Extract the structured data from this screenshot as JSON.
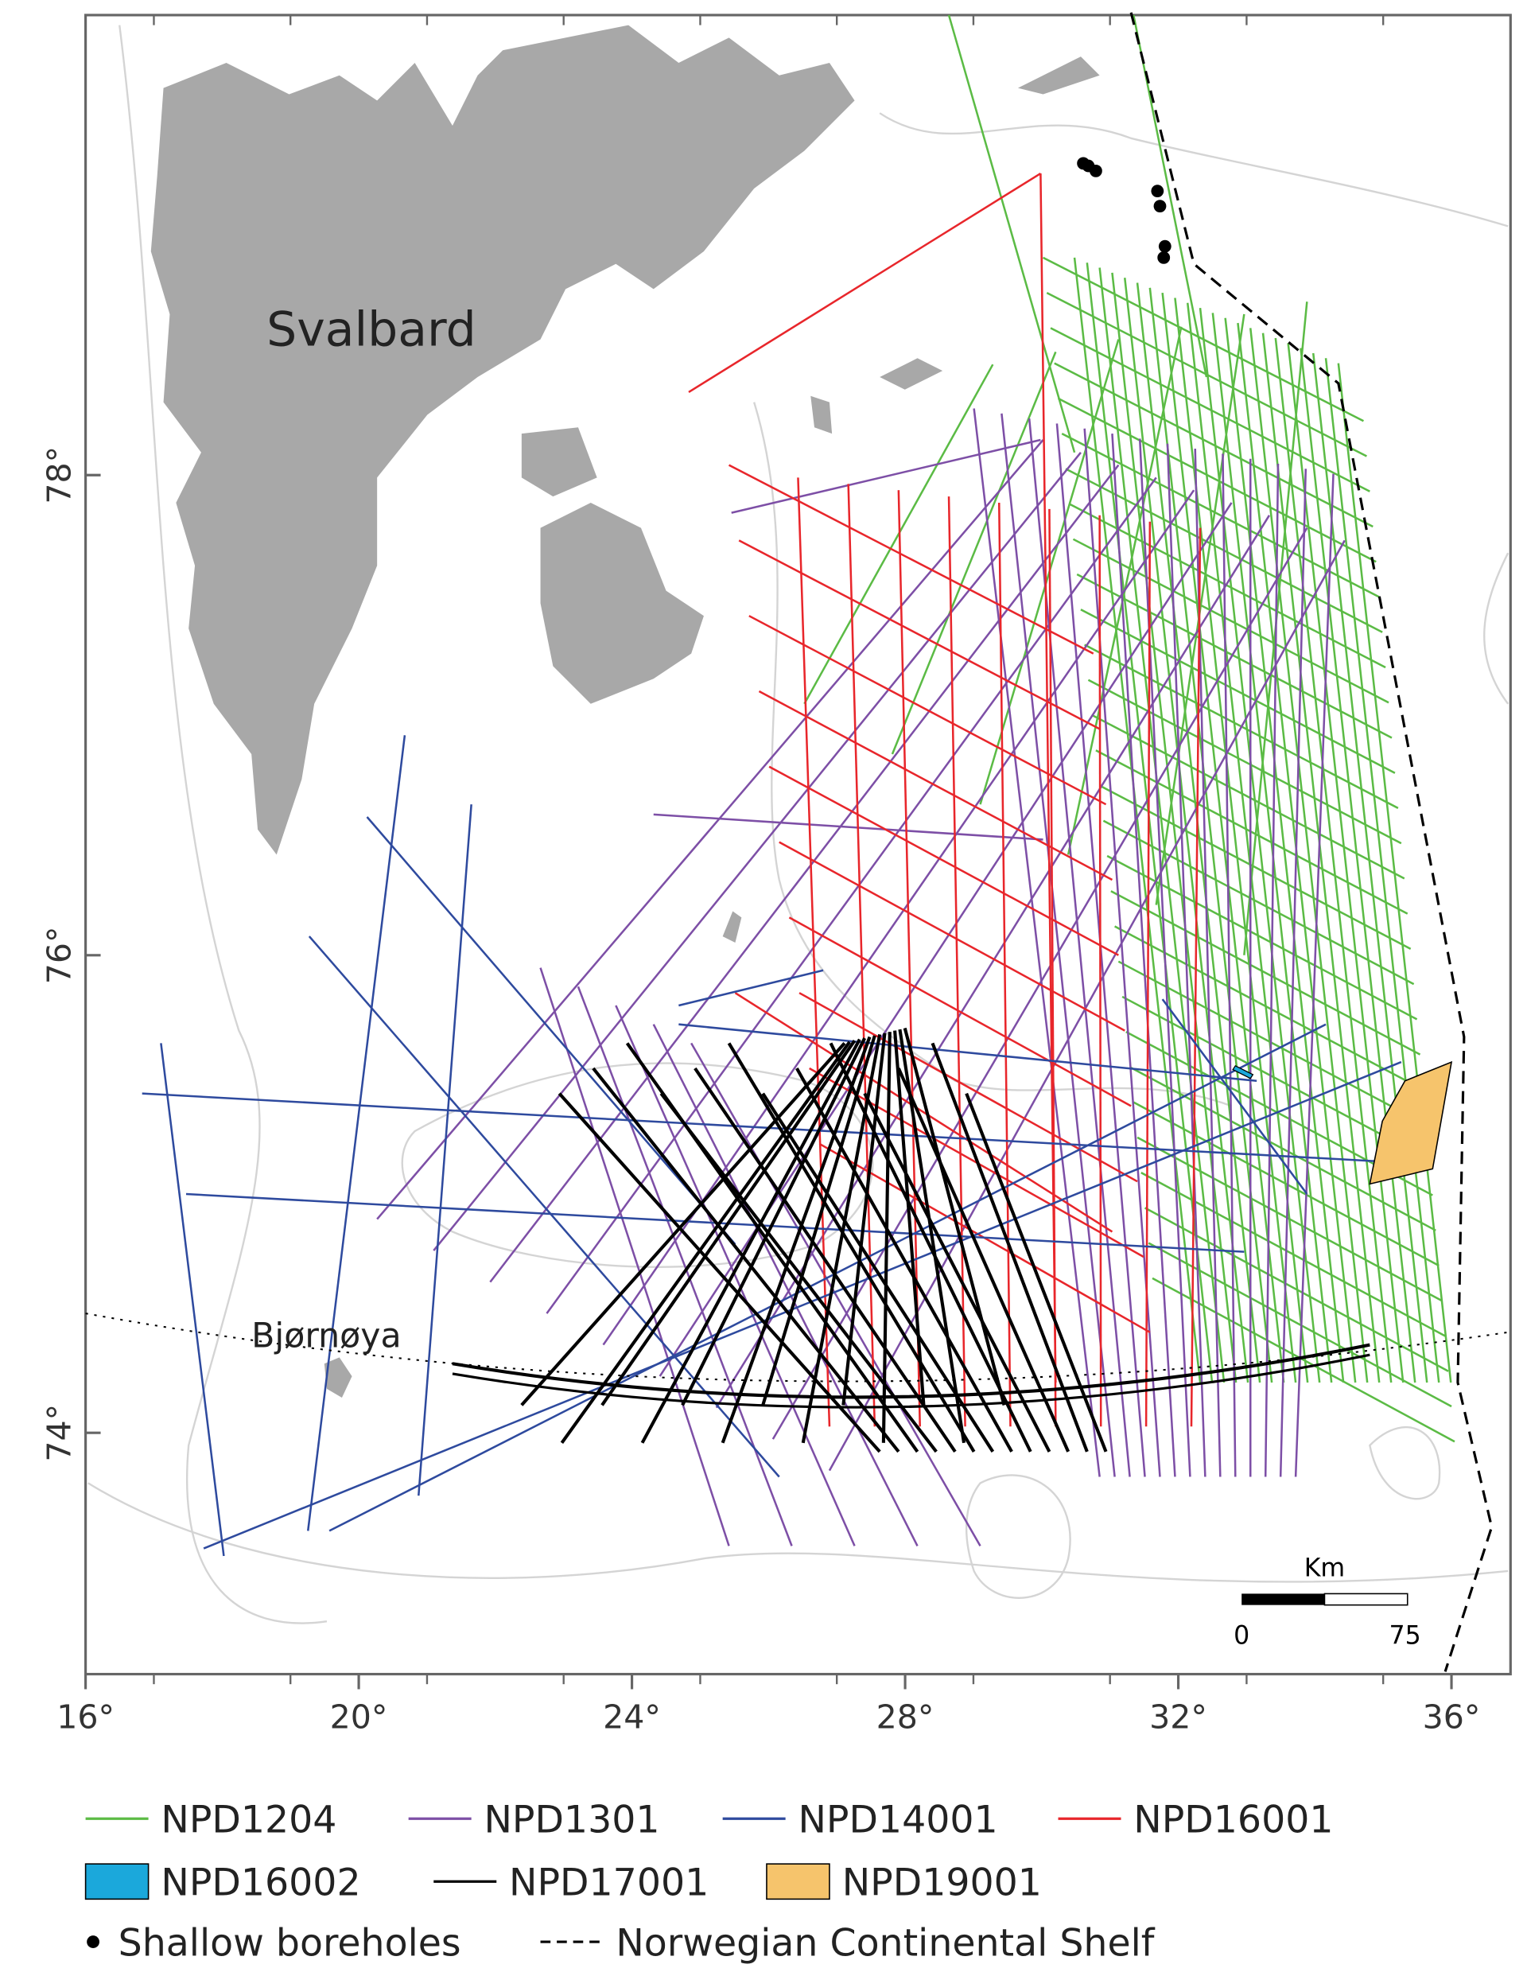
{
  "map": {
    "labels": {
      "svalbard": "Svalbard",
      "bjornoya": "Bjørnøya"
    },
    "lat_labels": [
      "78°",
      "76°",
      "74°"
    ],
    "lon_labels": [
      "16°",
      "20°",
      "24°",
      "28°",
      "32°",
      "36°"
    ],
    "scale": {
      "unit": "Km",
      "start": "0",
      "end": "75"
    }
  },
  "legend": [
    {
      "label": "NPD1204",
      "kind": "line",
      "color": "#5bbb45"
    },
    {
      "label": "NPD1301",
      "kind": "line",
      "color": "#7d4fa6"
    },
    {
      "label": "NPD14001",
      "kind": "line",
      "color": "#2e4a9e"
    },
    {
      "label": "NPD16001",
      "kind": "line",
      "color": "#e8262b"
    },
    {
      "label": "NPD16002",
      "kind": "box",
      "color": "#1ba8db"
    },
    {
      "label": "NPD17001",
      "kind": "line",
      "color": "#000000"
    },
    {
      "label": "NPD19001",
      "kind": "box",
      "color": "#f6c46c"
    },
    {
      "label": "Shallow boreholes",
      "kind": "dot",
      "color": "#000000"
    },
    {
      "label": "Norwegian Continental Shelf",
      "kind": "dash",
      "color": "#000000"
    }
  ]
}
